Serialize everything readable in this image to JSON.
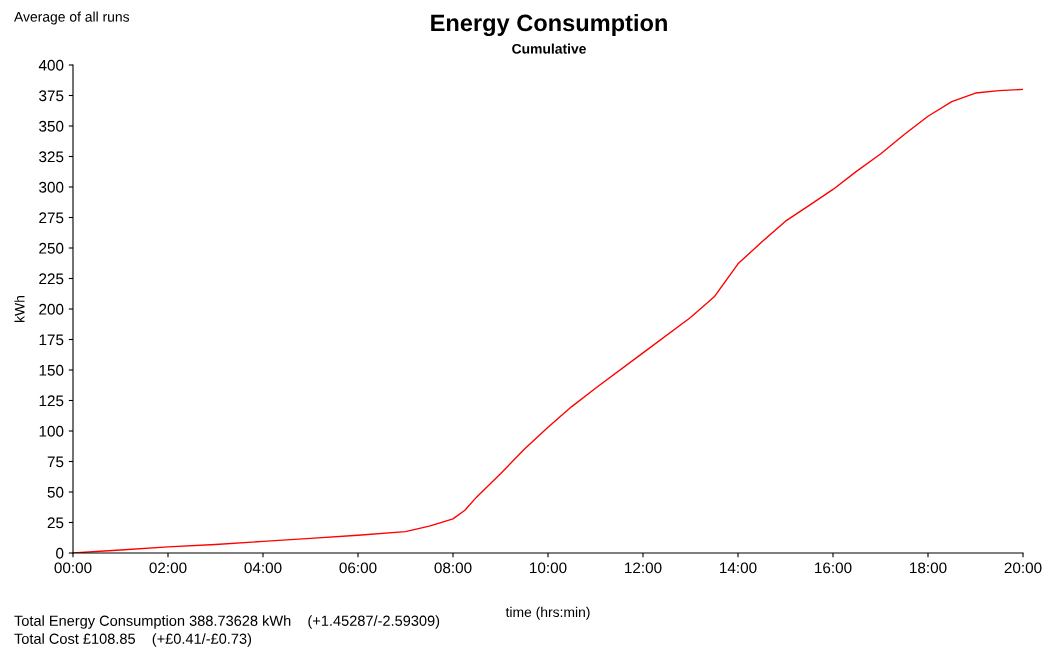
{
  "chart_data": {
    "type": "line",
    "title": "Energy Consumption",
    "subtitle": "Cumulative",
    "xlabel": "time (hrs:min)",
    "ylabel": "kWh",
    "annotations": [
      "Average of all runs",
      "Total Energy Consumption 388.73628 kWh    (+1.45287/-2.59309)",
      "Total Cost £108.85    (+£0.41/-£0.73)"
    ],
    "x": [
      0,
      1,
      2,
      3,
      4,
      5,
      6,
      7,
      7.5,
      8,
      8.25,
      8.5,
      9,
      9.5,
      10,
      10.5,
      11,
      12,
      13,
      13.5,
      14,
      14.5,
      15,
      15.5,
      16,
      16.5,
      17,
      17.5,
      18,
      18.5,
      19,
      19.5,
      20
    ],
    "series": [
      {
        "color": "#ff0000",
        "values": [
          0,
          2.5,
          5,
          7,
          9.5,
          12,
          14.5,
          17.5,
          22,
          28,
          35,
          46,
          65,
          85,
          103,
          120,
          135,
          164,
          193,
          210,
          237,
          255,
          272,
          285,
          298,
          313,
          327,
          343,
          358,
          370,
          377,
          379,
          380
        ]
      }
    ],
    "xlim": [
      0,
      20
    ],
    "xticks": [
      {
        "value": 0,
        "label": "00:00"
      },
      {
        "value": 2,
        "label": "02:00"
      },
      {
        "value": 4,
        "label": "04:00"
      },
      {
        "value": 6,
        "label": "06:00"
      },
      {
        "value": 8,
        "label": "08:00"
      },
      {
        "value": 10,
        "label": "10:00"
      },
      {
        "value": 12,
        "label": "12:00"
      },
      {
        "value": 14,
        "label": "14:00"
      },
      {
        "value": 16,
        "label": "16:00"
      },
      {
        "value": 18,
        "label": "18:00"
      },
      {
        "value": 20,
        "label": "20:00"
      }
    ],
    "ylim": [
      0,
      400
    ],
    "yticks": [
      0,
      25,
      50,
      75,
      100,
      125,
      150,
      175,
      200,
      225,
      250,
      275,
      300,
      325,
      350,
      375,
      400
    ],
    "grid": false,
    "legend": false
  }
}
